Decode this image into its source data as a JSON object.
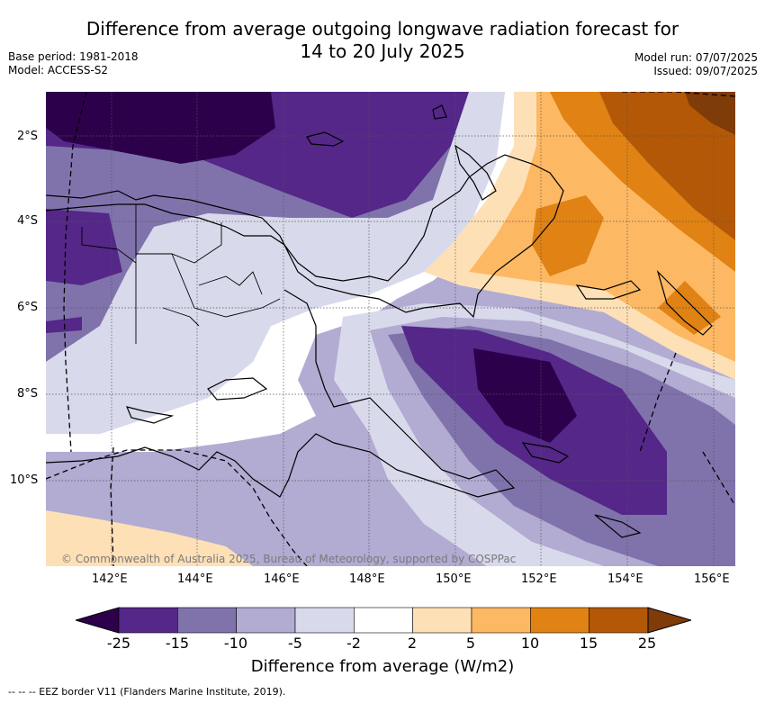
{
  "title_line1": "Difference from average outgoing longwave radiation forecast for",
  "title_line2": "14 to 20 July 2025",
  "base_period": "Base period: 1981-2018",
  "model": "Model: ACCESS-S2",
  "model_run": "Model run: 07/07/2025",
  "issued": "Issued: 09/07/2025",
  "copyright": "© Commonwealth of Australia 2025, Bureau of Meteorology, supported by COSPPac",
  "lat_labels": [
    "2°S",
    "4°S",
    "6°S",
    "8°S",
    "10°S"
  ],
  "lon_labels": [
    "142°E",
    "144°E",
    "146°E",
    "148°E",
    "150°E",
    "152°E",
    "154°E",
    "156°E"
  ],
  "colorbar": {
    "title": "Difference from average (W/m2)",
    "ticks": [
      "-25",
      "-15",
      "-10",
      "-5",
      "-2",
      "2",
      "5",
      "10",
      "15",
      "25"
    ],
    "colors": [
      "#2d004b",
      "#542788",
      "#8073ac",
      "#b2abd2",
      "#d8daeb",
      "#ffffff",
      "#fee0b6",
      "#fdb863",
      "#e08214",
      "#b35806",
      "#7f3b08"
    ]
  },
  "footnote": "-- -- -- EEZ border V11 (Flanders Marine Institute, 2019)."
}
